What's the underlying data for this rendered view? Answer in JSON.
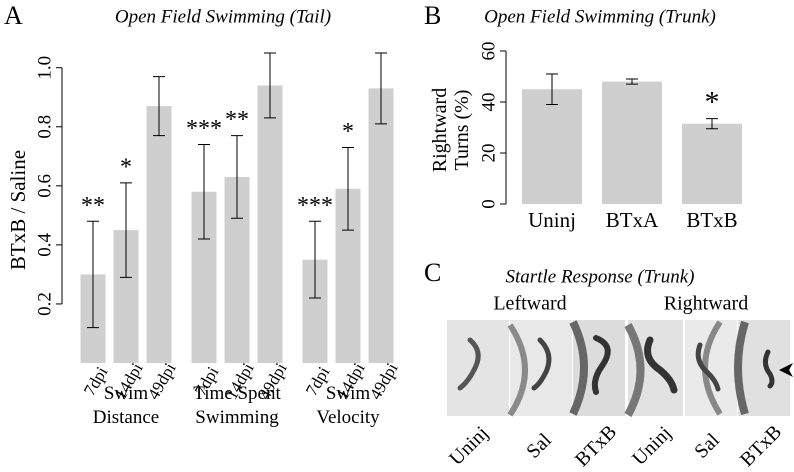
{
  "panel_labels": [
    "A",
    "B",
    "C"
  ],
  "chart_data": [
    {
      "type": "bar",
      "title": "Open Field Swimming (Tail)",
      "y_label": "BTxB / Saline",
      "categories": [
        "7dpi",
        "14dpi",
        "49dpi",
        "7dpi",
        "14dpi",
        "49dpi",
        "7dpi",
        "14dpi",
        "49dpi"
      ],
      "groups": [
        "Swim Distance",
        "Time Spent Swimming",
        "Swim Velocity"
      ],
      "values": [
        0.3,
        0.45,
        0.87,
        0.58,
        0.63,
        0.94,
        0.35,
        0.59,
        0.93
      ],
      "errors": [
        0.18,
        0.16,
        0.1,
        0.16,
        0.14,
        0.11,
        0.13,
        0.14,
        0.12
      ],
      "annotations": [
        "**",
        "*",
        null,
        "***",
        "**",
        null,
        "***",
        "*",
        null
      ],
      "color": "#cfcfcf",
      "ylim": [
        0,
        1.06
      ],
      "yticks": [
        0.2,
        0.4,
        0.6,
        0.8,
        {
          "value": 1,
          "label": "1.0"
        }
      ]
    },
    {
      "type": "bar",
      "title": "Open Field Swimming (Trunk)",
      "y_label": "Rightward Turns (%)",
      "categories": [
        "Uninj",
        "BTxA",
        "BTxB"
      ],
      "values": [
        45,
        48,
        31.5
      ],
      "errors": [
        6,
        1,
        2
      ],
      "annotations": [
        null,
        null,
        "*"
      ],
      "color": "#cfcfcf",
      "ylim": [
        0,
        60
      ],
      "yticks": [
        0,
        20,
        40,
        60
      ]
    }
  ],
  "panel_c": {
    "title": "Startle Response (Trunk)",
    "directions": [
      "Leftward",
      "Rightward"
    ],
    "labels": [
      "Uninj",
      "Sal",
      "BTxB",
      "Uninj",
      "Sal",
      "BTxB"
    ]
  }
}
